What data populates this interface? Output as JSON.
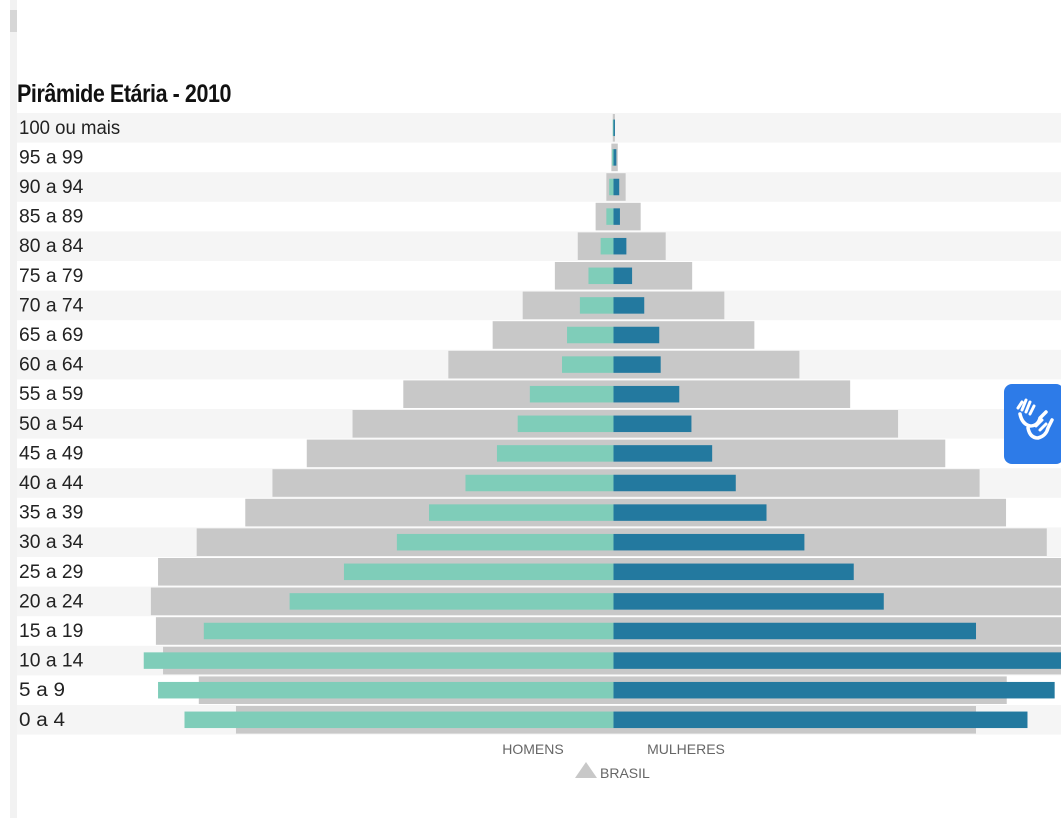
{
  "chart_data": {
    "type": "bar",
    "title": "Pirâmide Etária - 2010",
    "categories": [
      "100 ou mais",
      "95 a 99",
      "90 a 94",
      "85 a 89",
      "80 a 84",
      "75 a 79",
      "70 a 74",
      "65 a 69",
      "60 a 64",
      "55 a 59",
      "50 a 54",
      "45 a 49",
      "40 a 44",
      "35 a 39",
      "30 a 34",
      "25 a 29",
      "20 a 24",
      "15 a 19",
      "10 a 14",
      "5 a 9",
      "0 a 4"
    ],
    "xlim": [
      -6.3,
      6.3
    ],
    "series": [
      {
        "name": "HOMENS",
        "side": "left",
        "color": "#7fcdb9",
        "values": [
          0.01,
          0.02,
          0.06,
          0.1,
          0.18,
          0.35,
          0.47,
          0.65,
          0.72,
          1.17,
          1.34,
          1.63,
          2.07,
          2.58,
          3.03,
          3.77,
          4.53,
          5.73,
          6.57,
          6.37,
          6.0
        ]
      },
      {
        "name": "MULHERES",
        "side": "right",
        "color": "#23799f",
        "values": [
          0.02,
          0.04,
          0.08,
          0.09,
          0.18,
          0.26,
          0.43,
          0.64,
          0.66,
          0.92,
          1.09,
          1.38,
          1.71,
          2.14,
          2.67,
          3.36,
          3.78,
          5.07,
          6.27,
          6.17,
          5.79
        ]
      },
      {
        "name": "BRASIL",
        "color": "#c8c8c8",
        "values_left": [
          0.01,
          0.03,
          0.1,
          0.25,
          0.5,
          0.82,
          1.27,
          1.69,
          2.31,
          2.94,
          3.65,
          4.29,
          4.77,
          5.15,
          5.83,
          6.37,
          6.47,
          6.4,
          6.3,
          5.8,
          5.28
        ],
        "values_right": [
          0.02,
          0.06,
          0.17,
          0.38,
          0.73,
          1.1,
          1.55,
          1.97,
          2.6,
          3.31,
          3.98,
          4.64,
          5.12,
          5.49,
          6.06,
          6.5,
          6.5,
          6.44,
          6.29,
          5.5,
          5.07
        ]
      }
    ],
    "legend": [
      "HOMENS",
      "MULHERES",
      "BRASIL"
    ],
    "legend_placement": "bottom"
  },
  "colors": {
    "men": "#7fcdb9",
    "women": "#23799f",
    "brazil": "#c8c8c8",
    "row_stripe": "#f5f5f5",
    "accent_button": "#2d7be8"
  },
  "icons": {
    "brasil_marker": "triangle-icon",
    "accessibility": "sign-language-hands-icon"
  }
}
